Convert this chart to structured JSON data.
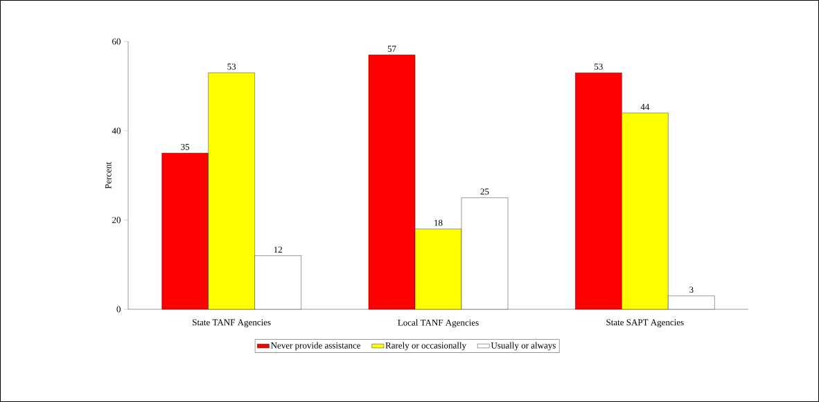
{
  "chart_data": {
    "type": "bar",
    "ylabel": "Percent",
    "categories": [
      "State TANF Agencies",
      "Local TANF Agencies",
      "State SAPT Agencies"
    ],
    "series": [
      {
        "name": "Never provide assistance",
        "color": "#ff0000",
        "values": [
          35,
          57,
          53
        ]
      },
      {
        "name": "Rarely or occasionally",
        "color": "#ffff00",
        "values": [
          53,
          18,
          44
        ]
      },
      {
        "name": "Usually or always",
        "color": "#ffffff",
        "values": [
          12,
          25,
          3
        ]
      }
    ],
    "ylim": [
      0,
      60
    ],
    "yticks": [
      0,
      20,
      40,
      60
    ],
    "data_labels": true,
    "legend": "bottom",
    "grid": false
  }
}
